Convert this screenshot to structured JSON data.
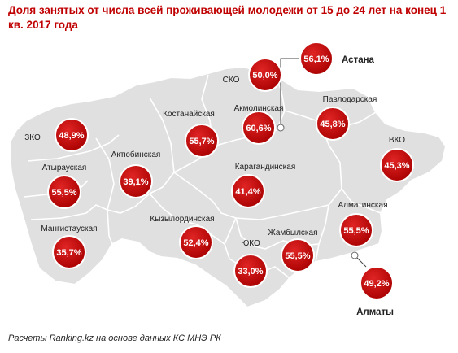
{
  "title": "Доля занятых от числа всей проживающей молодежи от 15 до 24 лет на конец 1 кв. 2017 года",
  "source": "Расчеты Ranking.kz на основе данных КС МНЭ РК",
  "colors": {
    "bubble": "#c00000",
    "map_fill": "#e0e0e0",
    "map_border": "#ffffff",
    "title": "#c00000"
  },
  "regions": [
    {
      "id": "sko",
      "name": "СКО",
      "value": "50,0%"
    },
    {
      "id": "astana",
      "name": "Астана",
      "value": "56,1%"
    },
    {
      "id": "akmola",
      "name": "Акмолинская",
      "value": "60,6%"
    },
    {
      "id": "pavlodar",
      "name": "Павлодарская",
      "value": "45,8%"
    },
    {
      "id": "kostanay",
      "name": "Костанайская",
      "value": "55,7%"
    },
    {
      "id": "zko",
      "name": "ЗКО",
      "value": "48,9%"
    },
    {
      "id": "aktobe",
      "name": "Актюбинская",
      "value": "39,1%"
    },
    {
      "id": "atyrau",
      "name": "Атырауская",
      "value": "55,5%"
    },
    {
      "id": "karaganda",
      "name": "Карагандинская",
      "value": "41,4%"
    },
    {
      "id": "vko",
      "name": "ВКО",
      "value": "45,3%"
    },
    {
      "id": "almaty_region",
      "name": "Алматинская",
      "value": "55,5%"
    },
    {
      "id": "mangystau",
      "name": "Мангистауская",
      "value": "35,7%"
    },
    {
      "id": "kyzylorda",
      "name": "Кызылординская",
      "value": "52,4%"
    },
    {
      "id": "zhambyl",
      "name": "Жамбылская",
      "value": "55,5%"
    },
    {
      "id": "yuko",
      "name": "ЮКО",
      "value": "33,0%"
    },
    {
      "id": "almaty_city",
      "name": "Алматы",
      "value": "49,2%"
    }
  ]
}
